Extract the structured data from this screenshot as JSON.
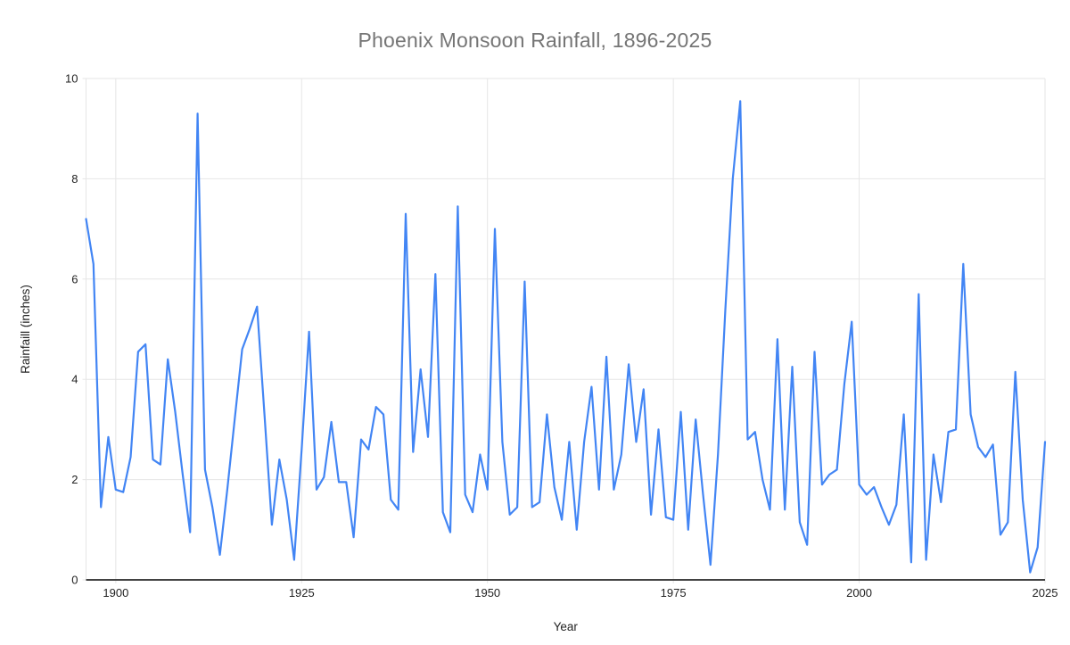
{
  "chart_data": {
    "type": "line",
    "title": "Phoenix Monsoon Rainfall, 1896-2025",
    "xlabel": "Year",
    "ylabel": "Rainfaill (inches)",
    "series_name": "rainfall",
    "x_start": 1896,
    "x_end": 2025,
    "xlim": [
      1896,
      2025
    ],
    "ylim": [
      0,
      10
    ],
    "x_ticks": [
      1900,
      1925,
      1950,
      1975,
      2000,
      2025
    ],
    "y_ticks": [
      0,
      2,
      4,
      6,
      8,
      10
    ],
    "grid": true,
    "legend_position": "none",
    "line_color": "#4285f4",
    "grid_color": "#e6e6e6",
    "axis_line_color": "#424242",
    "title_color": "#757575",
    "values": [
      7.2,
      6.3,
      1.45,
      2.85,
      1.8,
      1.75,
      2.45,
      4.55,
      4.7,
      2.4,
      2.3,
      4.4,
      3.35,
      2.1,
      0.95,
      9.3,
      2.2,
      1.45,
      0.5,
      1.8,
      3.2,
      4.6,
      5.0,
      5.45,
      3.3,
      1.1,
      2.4,
      1.6,
      0.4,
      2.6,
      4.95,
      1.8,
      2.05,
      3.15,
      1.95,
      1.95,
      0.85,
      2.8,
      2.6,
      3.45,
      3.3,
      1.6,
      1.4,
      7.3,
      2.55,
      4.2,
      2.85,
      6.1,
      1.35,
      0.95,
      7.45,
      1.7,
      1.35,
      2.5,
      1.8,
      7.0,
      2.75,
      1.3,
      1.45,
      5.95,
      1.45,
      1.55,
      3.3,
      1.85,
      1.2,
      2.75,
      1.0,
      2.75,
      3.85,
      1.8,
      4.45,
      1.8,
      2.5,
      4.3,
      2.75,
      3.8,
      1.3,
      3.0,
      1.25,
      1.2,
      3.35,
      1.0,
      3.2,
      1.7,
      0.3,
      2.5,
      5.4,
      8.0,
      9.55,
      2.8,
      2.95,
      2.0,
      1.4,
      4.8,
      1.4,
      4.25,
      1.15,
      0.7,
      4.55,
      1.9,
      2.1,
      2.2,
      3.9,
      5.15,
      1.9,
      1.7,
      1.85,
      1.45,
      1.1,
      1.5,
      3.3,
      0.35,
      5.7,
      0.4,
      2.5,
      1.55,
      2.95,
      3.0,
      6.3,
      3.3,
      2.65,
      2.45,
      2.7,
      0.9,
      1.15,
      4.15,
      1.6,
      0.15,
      0.65,
      2.75
    ]
  }
}
